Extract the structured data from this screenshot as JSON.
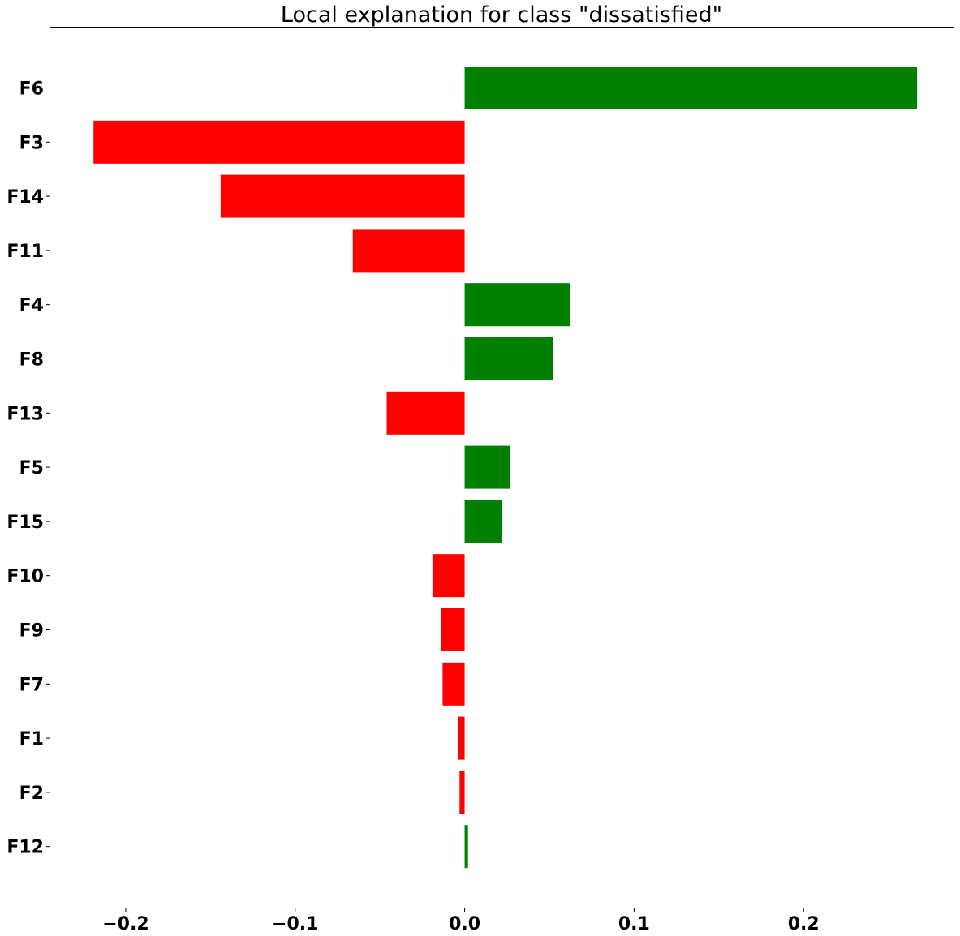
{
  "chart_data": {
    "type": "bar",
    "orientation": "horizontal",
    "title": "Local explanation for class \"dissatisfied\"",
    "xlabel": "",
    "ylabel": "",
    "xlim": [
      -0.2445,
      0.2885
    ],
    "xticks": [
      -0.2,
      -0.1,
      0.0,
      0.1,
      0.2
    ],
    "xtick_labels": [
      "−0.2",
      "−0.1",
      "0.0",
      "0.1",
      "0.2"
    ],
    "grid": false,
    "legend": null,
    "positive_color": "#008000",
    "negative_color": "#ff0000",
    "categories": [
      "F6",
      "F3",
      "F14",
      "F11",
      "F4",
      "F8",
      "F13",
      "F5",
      "F15",
      "F10",
      "F9",
      "F7",
      "F1",
      "F2",
      "F12"
    ],
    "values": [
      0.267,
      -0.219,
      -0.144,
      -0.066,
      0.062,
      0.052,
      -0.046,
      0.027,
      0.022,
      -0.019,
      -0.014,
      -0.013,
      -0.004,
      -0.003,
      0.002
    ]
  }
}
